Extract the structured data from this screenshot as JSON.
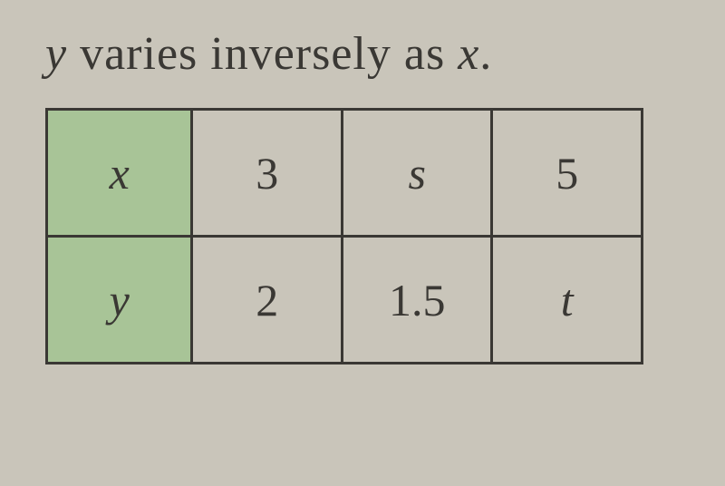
{
  "statement": {
    "var1": "y",
    "text1": " varies inversely as ",
    "var2": "x",
    "text2": "."
  },
  "table": {
    "type": "table",
    "columns": 4,
    "rows": [
      {
        "header": "x",
        "cells": [
          "3",
          "s",
          "5"
        ]
      },
      {
        "header": "y",
        "cells": [
          "2",
          "1.5",
          "t"
        ]
      }
    ],
    "header_bg_color": "#a8c497",
    "border_color": "#3a3834",
    "text_color": "#3a3834",
    "background_color": "#c9c5ba",
    "cell_fontsize": 50,
    "border_width": 3,
    "italic_cells": {
      "row0": [
        false,
        true,
        false
      ],
      "row1": [
        false,
        false,
        true
      ]
    }
  }
}
